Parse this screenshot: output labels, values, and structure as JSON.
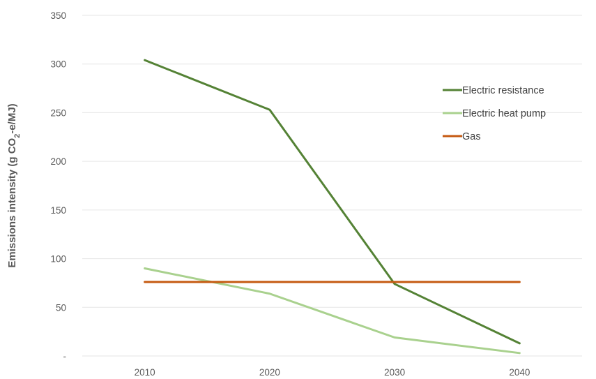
{
  "chart_data": {
    "type": "line",
    "title": "",
    "xlabel": "",
    "ylabel": {
      "prefix": "Emissions intensity (g CO",
      "subscript": "2",
      "suffix": "-e/MJ)"
    },
    "categories": [
      "2010",
      "2020",
      "2030",
      "2040"
    ],
    "ylim": [
      0,
      350
    ],
    "y_ticks": [
      0,
      50,
      100,
      150,
      200,
      250,
      300,
      350
    ],
    "y_tick_labels": [
      "-",
      "50",
      "100",
      "150",
      "200",
      "250",
      "300",
      "350"
    ],
    "grid": "horizontal",
    "legend_position": "right",
    "series": [
      {
        "name": "Electric resistance",
        "color": "#548235",
        "values": [
          304,
          253,
          74,
          13
        ]
      },
      {
        "name": "Electric heat pump",
        "color": "#a9d18e",
        "values": [
          90,
          64,
          19,
          3
        ]
      },
      {
        "name": "Gas",
        "color": "#c55a11",
        "values": [
          76,
          76,
          76,
          76
        ]
      }
    ]
  }
}
